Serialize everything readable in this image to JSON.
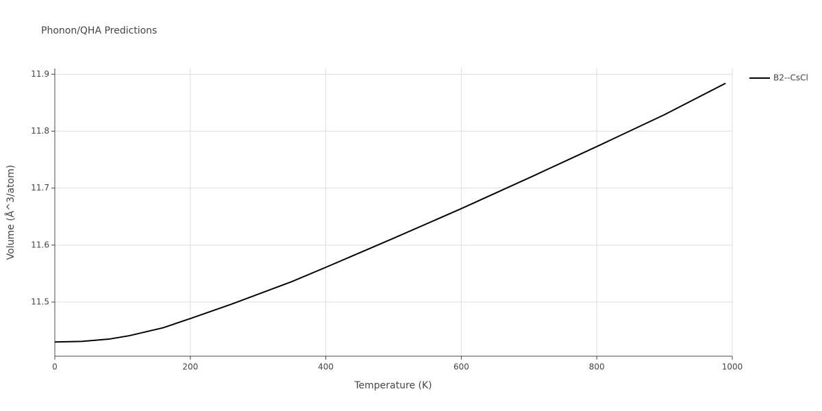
{
  "chart_data": {
    "type": "line",
    "title": "Phonon/QHA Predictions",
    "x_label": "Temperature (K)",
    "y_label": "Volume (Å^3/atom)",
    "x": [
      0,
      40,
      80,
      110,
      160,
      200,
      260,
      350,
      400,
      500,
      600,
      700,
      800,
      900,
      990
    ],
    "series": [
      {
        "name": "B2--CsCl",
        "color": "#000000",
        "values": [
          11.43,
          11.431,
          11.435,
          11.441,
          11.455,
          11.471,
          11.496,
          11.536,
          11.561,
          11.612,
          11.664,
          11.718,
          11.773,
          11.829,
          11.884
        ]
      }
    ],
    "xlim": [
      0,
      1000
    ],
    "xticks": [
      0,
      200,
      400,
      600,
      800,
      1000
    ],
    "ylim": [
      11.405,
      11.91
    ],
    "yticks": [
      11.5,
      11.6,
      11.7,
      11.8,
      11.9
    ],
    "grid": true,
    "legend": "right"
  }
}
